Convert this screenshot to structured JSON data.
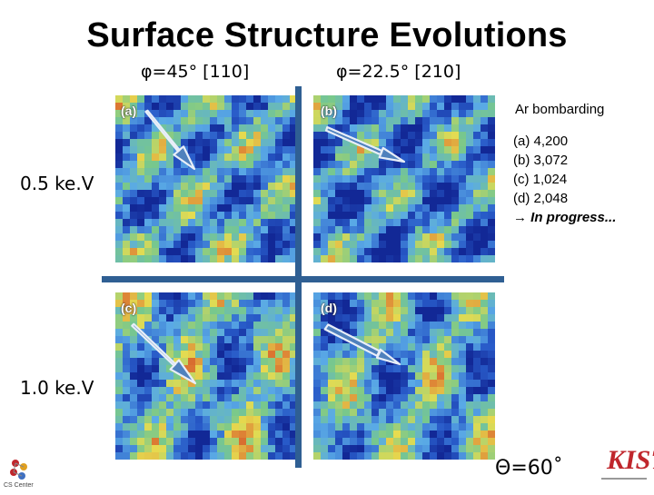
{
  "title": "Surface Structure Evolutions",
  "columns": [
    {
      "label": "φ=45° [110]"
    },
    {
      "label": "φ=22.5° [210]"
    }
  ],
  "rows": [
    {
      "label": "0.5 ke.V"
    },
    {
      "label": "1.0 ke.V"
    }
  ],
  "panels": [
    {
      "label": "(a)"
    },
    {
      "label": "(b)"
    },
    {
      "label": "(c)"
    },
    {
      "label": "(d)"
    }
  ],
  "info": {
    "heading": "Ar bombarding",
    "lines": [
      "(a) 4,200",
      "(b) 3,072",
      "(c)  1,024",
      "(d) 2,048"
    ],
    "progress": "In progress..."
  },
  "theta": "Θ=60˚",
  "logos": {
    "left_text": "CS Center",
    "right_text": "KIST"
  },
  "colors": {
    "divider": "#2f5f93",
    "arrow_fill": "#4f81bd",
    "heatmap_low": "#1e3fa0",
    "heatmap_high": "#c8322a",
    "logo_red": "#c0262c"
  }
}
